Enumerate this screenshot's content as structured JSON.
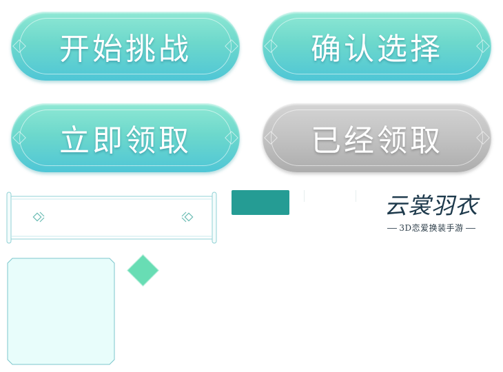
{
  "buttons": {
    "start_challenge": "开始挑战",
    "confirm_selection": "确认选择",
    "claim_now": "立即领取",
    "already_claimed": "已经领取"
  },
  "logo": {
    "title": "云裳羽衣",
    "subtitle": "3D恋爱换装手游"
  },
  "colors": {
    "teal_button_top": "#8fe8d4",
    "teal_button_bottom": "#4fc6d6",
    "gray_button": "#c2c2c2",
    "teal_block": "#259c94",
    "diamond": "#68ddb4",
    "panel_fill": "#e8fdfb",
    "panel_border": "#7cc6cc",
    "scroll_border": "#8fd0d4"
  }
}
